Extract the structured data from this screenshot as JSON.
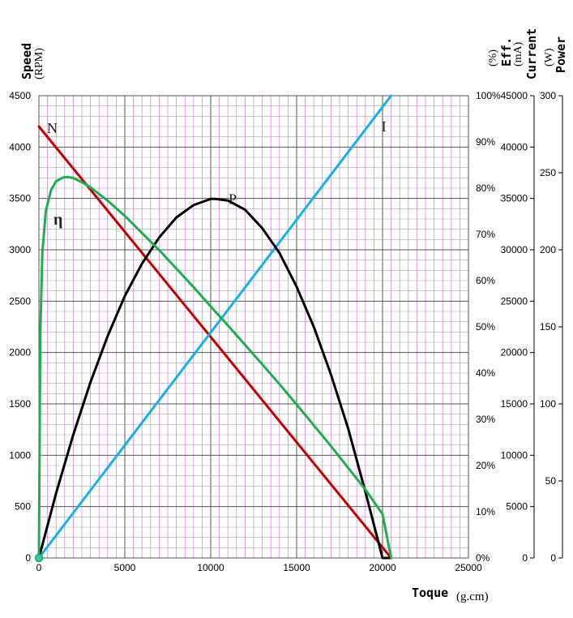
{
  "chart_data": {
    "type": "line",
    "x_axis": {
      "label": "Toque",
      "unit": "(g.cm)",
      "range": [
        0,
        25000
      ],
      "ticks": [
        0,
        5000,
        10000,
        15000,
        20000,
        25000
      ]
    },
    "axes": {
      "speed": {
        "label": "Speed",
        "unit": "(RPM)",
        "range": [
          0,
          4500
        ],
        "ticks": [
          0,
          500,
          1000,
          1500,
          2000,
          2500,
          3000,
          3500,
          4000,
          4500
        ]
      },
      "efficiency": {
        "label": "Eff.",
        "unit": "(%)",
        "range": [
          0,
          100
        ],
        "ticks": [
          "0%",
          "10%",
          "20%",
          "30%",
          "40%",
          "50%",
          "60%",
          "70%",
          "80%",
          "90%",
          "100%"
        ]
      },
      "current": {
        "label": "Current",
        "unit": "(mA)",
        "range": [
          0,
          45000
        ],
        "ticks": [
          0,
          5000,
          10000,
          15000,
          20000,
          25000,
          30000,
          35000,
          40000,
          45000
        ]
      },
      "power": {
        "label": "Power",
        "unit": "(W)",
        "range": [
          0,
          300
        ],
        "ticks": [
          0,
          50,
          100,
          150,
          200,
          250,
          300
        ]
      }
    },
    "series": [
      {
        "name": "N",
        "axis": "speed",
        "color": "#c00000",
        "x": [
          0,
          20500
        ],
        "y": [
          4200,
          0
        ]
      },
      {
        "name": "I",
        "axis": "current",
        "color": "#16b1e6",
        "x": [
          0,
          20500
        ],
        "y": [
          0,
          45000
        ]
      },
      {
        "name": "P",
        "axis": "power",
        "color": "#000000",
        "x": [
          0,
          1000,
          2000,
          3000,
          4000,
          5000,
          6000,
          7000,
          8000,
          9000,
          10000,
          10250,
          11000,
          12000,
          13000,
          14000,
          15000,
          16000,
          17000,
          18000,
          19000,
          20000,
          20500
        ],
        "y": [
          0,
          42,
          80,
          114,
          144,
          170,
          191,
          208,
          221,
          229,
          233,
          233,
          232,
          226,
          214,
          198,
          176,
          150,
          119,
          84,
          43,
          0,
          0
        ]
      },
      {
        "name": "η",
        "axis": "efficiency",
        "color": "#1fae4f",
        "x": [
          0,
          80,
          200,
          400,
          700,
          1000,
          1400,
          1700,
          2000,
          2500,
          3000,
          4000,
          5000,
          6000,
          7000,
          8000,
          9000,
          10000,
          11000,
          12000,
          13000,
          14000,
          15000,
          16000,
          17000,
          18000,
          19000,
          20000,
          20500
        ],
        "y": [
          0,
          48,
          66,
          75,
          79.5,
          81.5,
          82.3,
          82.4,
          82.2,
          81.3,
          80.2,
          77.3,
          74,
          70.3,
          66.6,
          62.6,
          58.6,
          54.4,
          50.3,
          46.1,
          41.9,
          37.6,
          33.2,
          28.7,
          24.2,
          19.5,
          14.8,
          9.5,
          0
        ]
      }
    ],
    "grid": true
  }
}
